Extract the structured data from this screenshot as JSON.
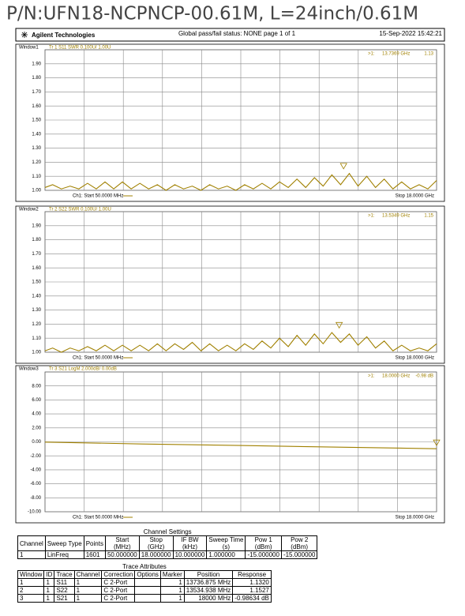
{
  "header": {
    "part_number": "P/N:UFN18-NCPNCP-00.61M, L=24inch/0.61M",
    "company": "Agilent Technologies",
    "status": "Global pass/fail status: NONE   page 1 of 1",
    "timestamp": "15-Sep-2022   15:42:21"
  },
  "chart_data": [
    {
      "type": "line",
      "window_label": "Window1",
      "title": "Tr 1  S11 SWR 0.100U/ 1.00U",
      "color": "#a08000",
      "x_start_label": "Ch1: Start 50.0000 MHz",
      "x_stop_label": "Stop 18.0000 GHz",
      "xlim": [
        0.05,
        18
      ],
      "ylim": [
        1,
        2
      ],
      "yticks": [
        {
          "value": 1,
          "label": "1.00"
        },
        {
          "value": 1.1,
          "label": "1.10"
        },
        {
          "value": 1.2,
          "label": "1.20"
        },
        {
          "value": 1.3,
          "label": "1.30"
        },
        {
          "value": 1.4,
          "label": "1.40"
        },
        {
          "value": 1.5,
          "label": "1.50"
        },
        {
          "value": 1.6,
          "label": "1.60"
        },
        {
          "value": 1.7,
          "label": "1.70"
        },
        {
          "value": 1.8,
          "label": "1.80"
        },
        {
          "value": 1.9,
          "label": "1.90"
        }
      ],
      "x": [
        0.05,
        0.4,
        0.8,
        1.2,
        1.6,
        2.0,
        2.4,
        2.8,
        3.2,
        3.6,
        4.0,
        4.4,
        4.8,
        5.2,
        5.6,
        6.0,
        6.4,
        6.8,
        7.2,
        7.6,
        8.0,
        8.4,
        8.8,
        9.2,
        9.6,
        10.0,
        10.4,
        10.8,
        11.2,
        11.6,
        12.0,
        12.4,
        12.8,
        13.2,
        13.6,
        14.0,
        14.4,
        14.8,
        15.2,
        15.6,
        16.0,
        16.4,
        16.8,
        17.2,
        17.6,
        18.0
      ],
      "values": [
        1.02,
        1.04,
        1.01,
        1.03,
        1.01,
        1.05,
        1.01,
        1.06,
        1.01,
        1.06,
        1.01,
        1.05,
        1.01,
        1.04,
        1.0,
        1.04,
        1.01,
        1.03,
        1.0,
        1.04,
        1.01,
        1.03,
        1.0,
        1.04,
        1.01,
        1.05,
        1.01,
        1.06,
        1.02,
        1.08,
        1.02,
        1.09,
        1.03,
        1.11,
        1.04,
        1.12,
        1.03,
        1.1,
        1.02,
        1.08,
        1.01,
        1.06,
        1.01,
        1.04,
        1.01,
        1.07
      ],
      "marker": {
        "name": ">1:",
        "x": 13.7369,
        "x_label": "13.7369 GHz",
        "value": 1.13
      }
    },
    {
      "type": "line",
      "window_label": "Window2",
      "title": "Tr 2  S22 SWR 0.100U/ 1.00U",
      "color": "#a08000",
      "x_start_label": "Ch1: Start 50.0000 MHz",
      "x_stop_label": "Stop 18.0000 GHz",
      "xlim": [
        0.05,
        18
      ],
      "ylim": [
        1,
        2
      ],
      "yticks": [
        {
          "value": 1,
          "label": "1.00"
        },
        {
          "value": 1.1,
          "label": "1.10"
        },
        {
          "value": 1.2,
          "label": "1.20"
        },
        {
          "value": 1.3,
          "label": "1.30"
        },
        {
          "value": 1.4,
          "label": "1.40"
        },
        {
          "value": 1.5,
          "label": "1.50"
        },
        {
          "value": 1.6,
          "label": "1.60"
        },
        {
          "value": 1.7,
          "label": "1.70"
        },
        {
          "value": 1.8,
          "label": "1.80"
        },
        {
          "value": 1.9,
          "label": "1.90"
        }
      ],
      "x": [
        0.05,
        0.4,
        0.8,
        1.2,
        1.6,
        2.0,
        2.4,
        2.8,
        3.2,
        3.6,
        4.0,
        4.4,
        4.8,
        5.2,
        5.6,
        6.0,
        6.4,
        6.8,
        7.2,
        7.6,
        8.0,
        8.4,
        8.8,
        9.2,
        9.6,
        10.0,
        10.4,
        10.8,
        11.2,
        11.6,
        12.0,
        12.4,
        12.8,
        13.2,
        13.6,
        14.0,
        14.4,
        14.8,
        15.2,
        15.6,
        16.0,
        16.4,
        16.8,
        17.2,
        17.6,
        18.0
      ],
      "values": [
        1.01,
        1.03,
        1.0,
        1.03,
        1.01,
        1.04,
        1.01,
        1.05,
        1.01,
        1.05,
        1.01,
        1.05,
        1.01,
        1.06,
        1.01,
        1.06,
        1.02,
        1.07,
        1.01,
        1.06,
        1.01,
        1.05,
        1.01,
        1.06,
        1.02,
        1.08,
        1.03,
        1.1,
        1.04,
        1.12,
        1.05,
        1.13,
        1.06,
        1.14,
        1.07,
        1.13,
        1.05,
        1.11,
        1.03,
        1.08,
        1.01,
        1.05,
        1.01,
        1.03,
        1.01,
        1.06
      ],
      "marker": {
        "name": ">1:",
        "x": 13.5349,
        "x_label": "13.5349 GHz",
        "value": 1.15
      }
    },
    {
      "type": "line",
      "window_label": "Window3",
      "title": "Tr 3  S21 LogM 2.000dB/ 0.00dB",
      "color": "#a08000",
      "x_start_label": "Ch1: Start 50.0000 MHz",
      "x_stop_label": "Stop 18.0000 GHz",
      "xlim": [
        0.05,
        18
      ],
      "ylim": [
        -10,
        10
      ],
      "yticks": [
        {
          "value": -10,
          "label": "-10.00"
        },
        {
          "value": -8,
          "label": "-8.00"
        },
        {
          "value": -6,
          "label": "-6.00"
        },
        {
          "value": -4,
          "label": "-4.00"
        },
        {
          "value": -2,
          "label": "-2.00"
        },
        {
          "value": 0,
          "label": "0.00"
        },
        {
          "value": 2,
          "label": "2.00"
        },
        {
          "value": 4,
          "label": "4.00"
        },
        {
          "value": 6,
          "label": "6.00"
        },
        {
          "value": 8,
          "label": "8.00"
        }
      ],
      "x": [
        0.05,
        4.5,
        9,
        13.5,
        18
      ],
      "values": [
        -0.03,
        -0.3,
        -0.52,
        -0.76,
        -0.98
      ],
      "marker": {
        "name": ">1:",
        "x": 18,
        "x_label": "18.0000 GHz",
        "value": -0.98,
        "value_label": "-0.98 dB"
      }
    }
  ],
  "channel_settings": {
    "title": "Channel Settings",
    "headers": [
      [
        "Channel"
      ],
      [
        "Sweep Type"
      ],
      [
        "Points"
      ],
      [
        "Start",
        "(MHz)"
      ],
      [
        "Stop",
        "(GHz)"
      ],
      [
        "IF BW",
        "(kHz)"
      ],
      [
        "Sweep Time",
        "(s)"
      ],
      [
        "Pow 1",
        "(dBm)"
      ],
      [
        "Pow 2",
        "(dBm)"
      ]
    ],
    "rows": [
      [
        "1",
        "LinFreq",
        "1601",
        "50.000000",
        "18.000000",
        "10.000000",
        "1.000000",
        "-15.000000",
        "-15.000000"
      ]
    ]
  },
  "trace_attributes": {
    "title": "Trace Attributes",
    "headers": [
      "Window",
      "ID",
      "Trace",
      "Channel",
      "Correction",
      "Options",
      "Marker",
      "Position",
      "Response"
    ],
    "rows": [
      [
        "1",
        "1",
        "S11",
        "1",
        "C 2-Port",
        null,
        "1",
        "13736.875 MHz",
        "1.1320"
      ],
      [
        "2",
        "1",
        "S22",
        "1",
        "C 2-Port",
        null,
        "1",
        "13534.938 MHz",
        "1.1527"
      ],
      [
        "3",
        "1",
        "S21",
        "1",
        "C 2-Port",
        null,
        "1",
        "18000 MHz",
        "-0.98634 dB"
      ]
    ]
  }
}
